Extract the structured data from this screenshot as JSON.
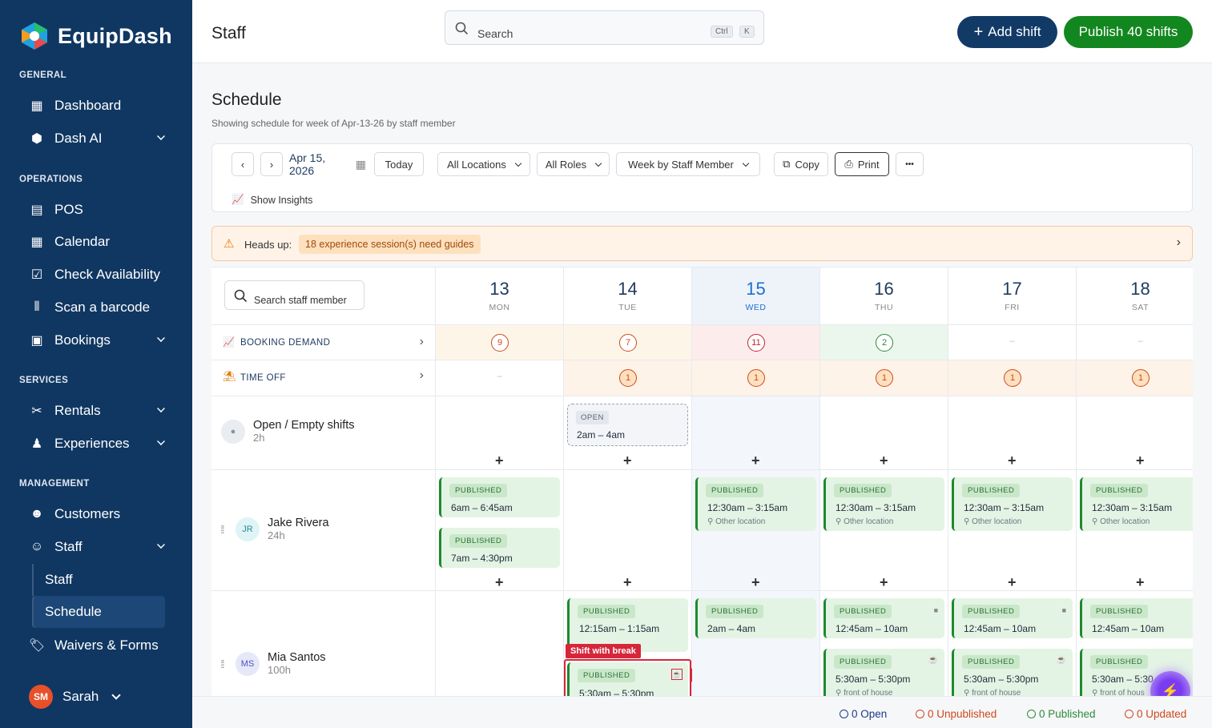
{
  "app": {
    "name": "EquipDash"
  },
  "sidebar": {
    "sections": {
      "general": "GENERAL",
      "operations": "OPERATIONS",
      "services": "SERVICES",
      "management": "MANAGEMENT"
    },
    "items": {
      "dashboard": "Dashboard",
      "dash_ai": "Dash AI",
      "pos": "POS",
      "calendar": "Calendar",
      "check_availability": "Check Availability",
      "scan": "Scan a barcode",
      "bookings": "Bookings",
      "rentals": "Rentals",
      "experiences": "Experiences",
      "customers": "Customers",
      "staff": "Staff",
      "staff_sub": "Staff",
      "schedule_sub": "Schedule",
      "waivers": "Waivers & Forms"
    },
    "user": {
      "initials": "SM",
      "name": "Sarah"
    }
  },
  "header": {
    "title": "Staff",
    "search_placeholder": "Search",
    "kbd_ctrl": "Ctrl",
    "kbd_k": "K",
    "add_shift": "Add shift",
    "publish": "Publish 40 shifts"
  },
  "schedule": {
    "title": "Schedule",
    "subtitle": "Showing schedule for week of Apr-13-26 by staff member",
    "toolbar": {
      "date": "Apr 15, 2026",
      "today": "Today",
      "locations": "All Locations",
      "roles": "All Roles",
      "view": "Week by Staff Member",
      "copy": "Copy",
      "print": "Print",
      "more": "•••",
      "insights": "Show Insights"
    },
    "alert": {
      "label": "Heads up:",
      "badge": "18 experience session(s) need guides"
    },
    "staff_search_placeholder": "Search staff member",
    "days": [
      {
        "num": "13",
        "name": "MON"
      },
      {
        "num": "14",
        "name": "TUE"
      },
      {
        "num": "15",
        "name": "WED"
      },
      {
        "num": "16",
        "name": "THU"
      },
      {
        "num": "17",
        "name": "FRI"
      },
      {
        "num": "18",
        "name": "SAT"
      }
    ],
    "booking_demand": {
      "label": "BOOKING DEMAND",
      "values": [
        "9",
        "7",
        "11",
        "2",
        "–",
        "–"
      ]
    },
    "time_off": {
      "label": "TIME OFF",
      "values": [
        "–",
        "1",
        "1",
        "1",
        "1",
        "1"
      ]
    },
    "open_row": {
      "name": "Open / Empty shifts",
      "hours": "2h",
      "open_badge": "OPEN",
      "open_time": "2am – 4am"
    },
    "jake": {
      "initials": "JR",
      "name": "Jake Rivera",
      "hours": "24h"
    },
    "mia": {
      "initials": "MS",
      "name": "Mia Santos",
      "hours": "100h"
    },
    "published": "PUBLISHED",
    "times": {
      "t1": "6am – 6:45am",
      "t2": "7am – 4:30pm",
      "t3": "12:30am – 3:15am",
      "t4": "12:15am – 1:15am",
      "t5": "2am – 4am",
      "t6": "12:45am – 10am",
      "t7": "5:30am – 5:30pm",
      "t7b": "5:30am – 5:30"
    },
    "other_location": "Other location",
    "front_of_house": "front of house",
    "front_of_house_short": "front of hous",
    "annotations": {
      "shift_with_break": "Shift with break",
      "break_icon": "Break icon"
    }
  },
  "footer": {
    "open": "0 Open",
    "unpublished": "0 Unpublished",
    "published": "0 Published",
    "updated": "0 Updated"
  },
  "colors": {
    "sidebar": "#103762",
    "publish": "#13871f",
    "accent_red": "#d6263a"
  }
}
